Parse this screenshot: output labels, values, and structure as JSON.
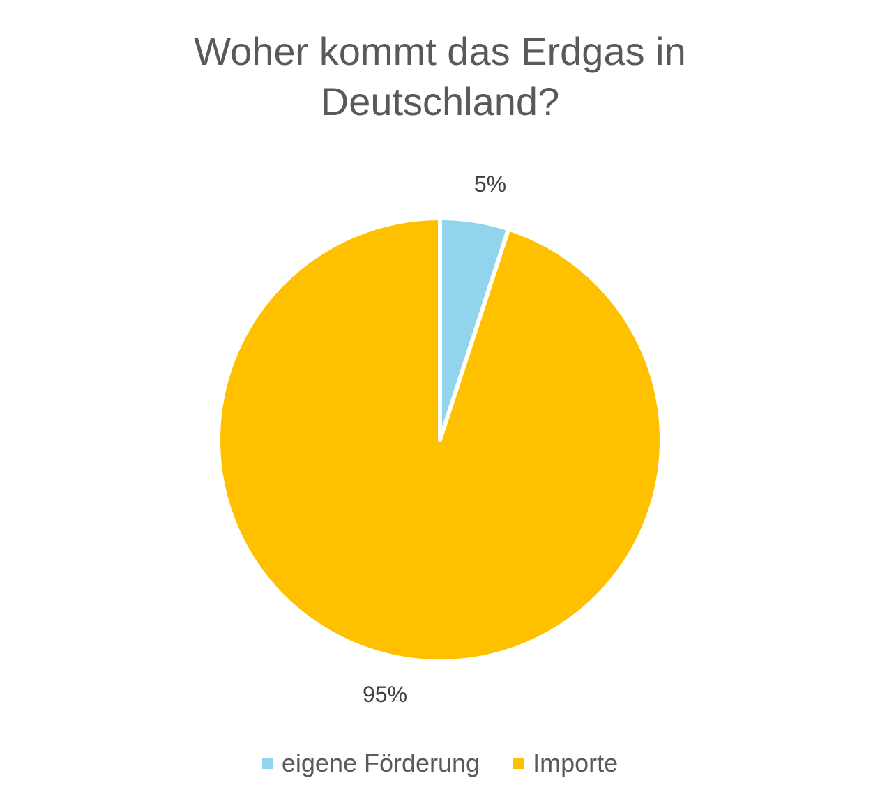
{
  "chart_data": {
    "type": "pie",
    "title_lines": [
      "Woher kommt das Erdgas in",
      "Deutschland?"
    ],
    "slices": [
      {
        "name": "eigene Förderung",
        "value": 5,
        "label": "5%",
        "color": "#92D4EC"
      },
      {
        "name": "Importe",
        "value": 95,
        "label": "95%",
        "color": "#FFC000"
      }
    ],
    "legend_position": "bottom"
  }
}
